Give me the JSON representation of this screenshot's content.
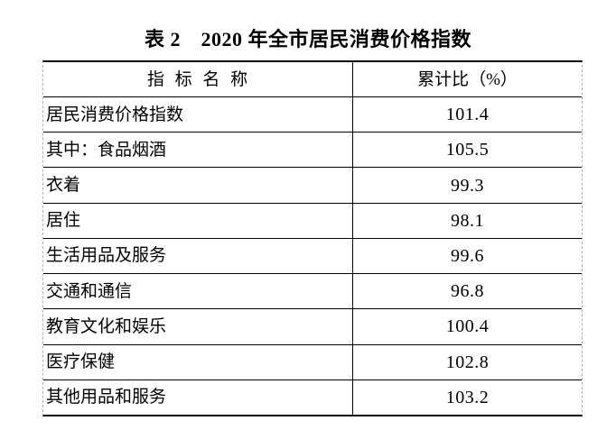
{
  "page": {
    "background": "#ffffff",
    "text_color": "#000000",
    "border_solid_color": "#000000",
    "border_dashed_color": "#b0b0b0"
  },
  "title": "表 2　2020 年全市居民消费价格指数",
  "table": {
    "columns": [
      {
        "label": "指 标 名 称"
      },
      {
        "label": "累计比（%）"
      }
    ],
    "rows": [
      {
        "label": "居民消费价格指数",
        "value": "101.4",
        "indent": 0
      },
      {
        "label": "其中：食品烟酒",
        "value": "105.5",
        "indent": 1
      },
      {
        "label": "衣着",
        "value": "99.3",
        "indent": 2
      },
      {
        "label": "居住",
        "value": "98.1",
        "indent": 2
      },
      {
        "label": "生活用品及服务",
        "value": "99.6",
        "indent": 2
      },
      {
        "label": "交通和通信",
        "value": "96.8",
        "indent": 2
      },
      {
        "label": "教育文化和娱乐",
        "value": "100.4",
        "indent": 2
      },
      {
        "label": "医疗保健",
        "value": "102.8",
        "indent": 2
      },
      {
        "label": "其他用品和服务",
        "value": "103.2",
        "indent": 2
      }
    ]
  }
}
